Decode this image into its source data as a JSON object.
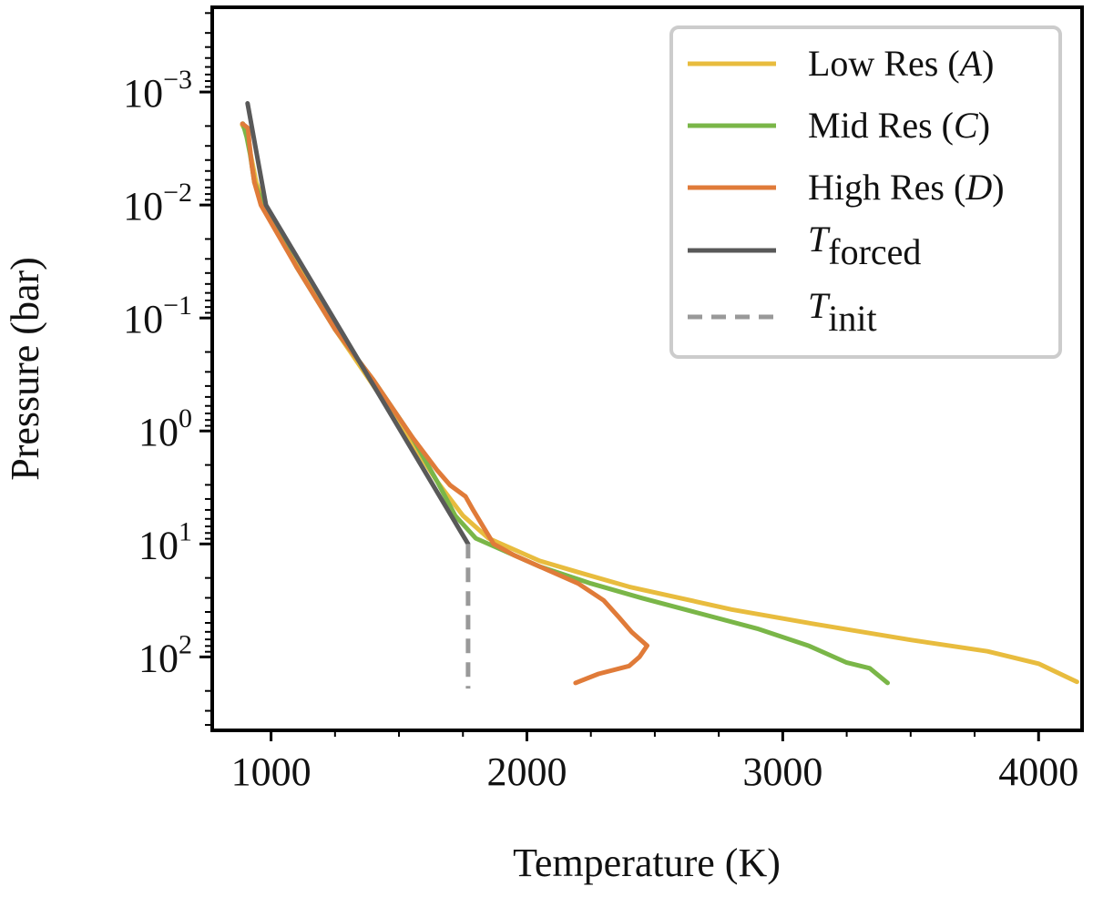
{
  "chart_data": {
    "type": "line",
    "xlabel": "Temperature (K)",
    "ylabel": "Pressure (bar)",
    "xlim": [
      770,
      4170
    ],
    "ylim_log10": [
      -3.75,
      2.65
    ],
    "y_scale": "log",
    "y_inverted": true,
    "grid": false,
    "legend_placement": "top-right",
    "xticks": [
      {
        "value": 1000,
        "label": "1000"
      },
      {
        "value": 2000,
        "label": "2000"
      },
      {
        "value": 3000,
        "label": "3000"
      },
      {
        "value": 4000,
        "label": "4000"
      }
    ],
    "yticks": [
      {
        "log10": -3,
        "base": "10",
        "exp": "−3"
      },
      {
        "log10": -2,
        "base": "10",
        "exp": "−2"
      },
      {
        "log10": -1,
        "base": "10",
        "exp": "−1"
      },
      {
        "log10": 0,
        "base": "10",
        "exp": "0"
      },
      {
        "log10": 1,
        "base": "10",
        "exp": "1"
      },
      {
        "log10": 2,
        "base": "10",
        "exp": "2"
      }
    ],
    "series": [
      {
        "name": "Low Res",
        "name_var": "A",
        "color": "#E8BC3E",
        "dash": false,
        "points": [
          [
            887,
            -2.71
          ],
          [
            910,
            -2.62
          ],
          [
            920,
            -2.45
          ],
          [
            942,
            -2.2
          ],
          [
            975,
            -2.0
          ],
          [
            1100,
            -1.5
          ],
          [
            1250,
            -0.9
          ],
          [
            1400,
            -0.4
          ],
          [
            1550,
            0.1
          ],
          [
            1650,
            0.45
          ],
          [
            1750,
            0.75
          ],
          [
            1850,
            0.95
          ],
          [
            1950,
            1.05
          ],
          [
            2050,
            1.15
          ],
          [
            2200,
            1.25
          ],
          [
            2400,
            1.38
          ],
          [
            2600,
            1.48
          ],
          [
            2800,
            1.58
          ],
          [
            3100,
            1.7
          ],
          [
            3500,
            1.85
          ],
          [
            3800,
            1.95
          ],
          [
            4000,
            2.06
          ],
          [
            4150,
            2.22
          ]
        ]
      },
      {
        "name": "Mid Res",
        "name_var": "C",
        "color": "#7AB648",
        "dash": false,
        "points": [
          [
            890,
            -2.72
          ],
          [
            905,
            -2.6
          ],
          [
            918,
            -2.45
          ],
          [
            935,
            -2.2
          ],
          [
            970,
            -2.0
          ],
          [
            1100,
            -1.45
          ],
          [
            1250,
            -0.9
          ],
          [
            1400,
            -0.45
          ],
          [
            1550,
            0.05
          ],
          [
            1650,
            0.45
          ],
          [
            1720,
            0.75
          ],
          [
            1800,
            0.95
          ],
          [
            1900,
            1.05
          ],
          [
            2050,
            1.2
          ],
          [
            2250,
            1.35
          ],
          [
            2450,
            1.48
          ],
          [
            2650,
            1.6
          ],
          [
            2900,
            1.75
          ],
          [
            3100,
            1.9
          ],
          [
            3250,
            2.05
          ],
          [
            3340,
            2.1
          ],
          [
            3410,
            2.23
          ]
        ]
      },
      {
        "name": "High Res",
        "name_var": "D",
        "color": "#E07B39",
        "dash": false,
        "points": [
          [
            888,
            -2.72
          ],
          [
            910,
            -2.68
          ],
          [
            915,
            -2.55
          ],
          [
            925,
            -2.35
          ],
          [
            935,
            -2.2
          ],
          [
            960,
            -2.0
          ],
          [
            1100,
            -1.45
          ],
          [
            1250,
            -0.9
          ],
          [
            1400,
            -0.45
          ],
          [
            1550,
            0.05
          ],
          [
            1650,
            0.35
          ],
          [
            1700,
            0.48
          ],
          [
            1760,
            0.58
          ],
          [
            1790,
            0.7
          ],
          [
            1830,
            0.85
          ],
          [
            1870,
            1.0
          ],
          [
            1950,
            1.1
          ],
          [
            2050,
            1.2
          ],
          [
            2200,
            1.35
          ],
          [
            2300,
            1.5
          ],
          [
            2360,
            1.65
          ],
          [
            2410,
            1.78
          ],
          [
            2470,
            1.9
          ],
          [
            2440,
            2.0
          ],
          [
            2400,
            2.08
          ],
          [
            2280,
            2.15
          ],
          [
            2190,
            2.23
          ]
        ]
      },
      {
        "name": "T",
        "name_sub": "forced",
        "color": "#595959",
        "dash": false,
        "points": [
          [
            908,
            -2.9
          ],
          [
            980,
            -2.0
          ],
          [
            1770,
            1.0
          ]
        ]
      },
      {
        "name": "T",
        "name_sub": "init",
        "color": "#999999",
        "dash": true,
        "points": [
          [
            1770,
            1.0
          ],
          [
            1770,
            2.28
          ]
        ]
      }
    ]
  }
}
